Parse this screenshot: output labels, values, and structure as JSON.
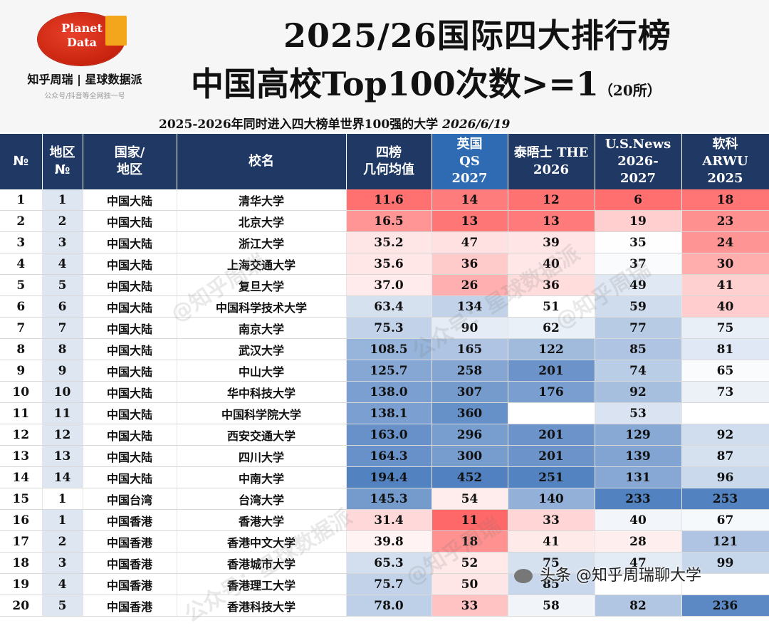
{
  "logo": {
    "line1": "Planet",
    "line2": "Data",
    "brand": "知乎周瑞 | 星球数据派",
    "sub": "公众号/抖音等全网独一号"
  },
  "title": {
    "line1": "2025/26国际四大排行榜",
    "line2": "中国高校Top100次数>=1",
    "count": "（20所）"
  },
  "subtitle": {
    "text": "2025-2026年同时进入四大榜单世界100强的大学",
    "date": "2026/6/19"
  },
  "columns": {
    "no": "№",
    "region_no": [
      "地区",
      "№"
    ],
    "country": [
      "国家/",
      "地区"
    ],
    "name": "校名",
    "geo": [
      "四榜",
      "几何均值"
    ],
    "qs": [
      "英国",
      "QS",
      "2027"
    ],
    "the": [
      "泰晤士 THE",
      "2026"
    ],
    "usnews": [
      "U.S.News",
      "2026-",
      "2027"
    ],
    "arwu": [
      "软科",
      "ARWU",
      "2025"
    ]
  },
  "rows": [
    {
      "no": "1",
      "rno": "1",
      "region": "中国大陆",
      "name": "清华大学",
      "geo": "11.6",
      "qs": "14",
      "the": "12",
      "us": "6",
      "arwu": "18"
    },
    {
      "no": "2",
      "rno": "2",
      "region": "中国大陆",
      "name": "北京大学",
      "geo": "16.5",
      "qs": "13",
      "the": "13",
      "us": "19",
      "arwu": "23"
    },
    {
      "no": "3",
      "rno": "3",
      "region": "中国大陆",
      "name": "浙江大学",
      "geo": "35.2",
      "qs": "47",
      "the": "39",
      "us": "35",
      "arwu": "24"
    },
    {
      "no": "4",
      "rno": "4",
      "region": "中国大陆",
      "name": "上海交通大学",
      "geo": "35.6",
      "qs": "36",
      "the": "40",
      "us": "37",
      "arwu": "30"
    },
    {
      "no": "5",
      "rno": "5",
      "region": "中国大陆",
      "name": "复旦大学",
      "geo": "37.0",
      "qs": "26",
      "the": "36",
      "us": "49",
      "arwu": "41"
    },
    {
      "no": "6",
      "rno": "6",
      "region": "中国大陆",
      "name": "中国科学技术大学",
      "geo": "63.4",
      "qs": "134",
      "the": "51",
      "us": "59",
      "arwu": "40"
    },
    {
      "no": "7",
      "rno": "7",
      "region": "中国大陆",
      "name": "南京大学",
      "geo": "75.3",
      "qs": "90",
      "the": "62",
      "us": "77",
      "arwu": "75"
    },
    {
      "no": "8",
      "rno": "8",
      "region": "中国大陆",
      "name": "武汉大学",
      "geo": "108.5",
      "qs": "165",
      "the": "122",
      "us": "85",
      "arwu": "81"
    },
    {
      "no": "9",
      "rno": "9",
      "region": "中国大陆",
      "name": "中山大学",
      "geo": "125.7",
      "qs": "258",
      "the": "201",
      "us": "74",
      "arwu": "65"
    },
    {
      "no": "10",
      "rno": "10",
      "region": "中国大陆",
      "name": "华中科技大学",
      "geo": "138.0",
      "qs": "307",
      "the": "176",
      "us": "92",
      "arwu": "73"
    },
    {
      "no": "11",
      "rno": "11",
      "region": "中国大陆",
      "name": "中国科学院大学",
      "geo": "138.1",
      "qs": "360",
      "the": "",
      "us": "53",
      "arwu": ""
    },
    {
      "no": "12",
      "rno": "12",
      "region": "中国大陆",
      "name": "西安交通大学",
      "geo": "163.0",
      "qs": "296",
      "the": "201",
      "us": "129",
      "arwu": "92"
    },
    {
      "no": "13",
      "rno": "13",
      "region": "中国大陆",
      "name": "四川大学",
      "geo": "164.3",
      "qs": "300",
      "the": "201",
      "us": "139",
      "arwu": "87"
    },
    {
      "no": "14",
      "rno": "14",
      "region": "中国大陆",
      "name": "中南大学",
      "geo": "194.4",
      "qs": "452",
      "the": "251",
      "us": "131",
      "arwu": "96"
    },
    {
      "no": "15",
      "rno": "1",
      "region": "中国台湾",
      "name": "台湾大学",
      "geo": "145.3",
      "qs": "54",
      "the": "140",
      "us": "233",
      "arwu": "253"
    },
    {
      "no": "16",
      "rno": "1",
      "region": "中国香港",
      "name": "香港大学",
      "geo": "31.4",
      "qs": "11",
      "the": "33",
      "us": "40",
      "arwu": "67"
    },
    {
      "no": "17",
      "rno": "2",
      "region": "中国香港",
      "name": "香港中文大学",
      "geo": "39.8",
      "qs": "18",
      "the": "41",
      "us": "28",
      "arwu": "121"
    },
    {
      "no": "18",
      "rno": "3",
      "region": "中国香港",
      "name": "香港城市大学",
      "geo": "65.3",
      "qs": "52",
      "the": "75",
      "us": "47",
      "arwu": "99"
    },
    {
      "no": "19",
      "rno": "4",
      "region": "中国香港",
      "name": "香港理工大学",
      "geo": "75.7",
      "qs": "50",
      "the": "85",
      "us": "",
      "arwu": ""
    },
    {
      "no": "20",
      "rno": "5",
      "region": "中国香港",
      "name": "香港科技大学",
      "geo": "78.0",
      "qs": "33",
      "the": "58",
      "us": "82",
      "arwu": "236"
    }
  ],
  "watermarks": [
    "@知乎周瑞",
    "公众号：星球数据派"
  ],
  "footer": "头条 @知乎周瑞聊大学",
  "colors": {
    "header_bg": "#1f3864",
    "qs_header_bg": "#2e6bb3",
    "region_bg": "#dde6f1",
    "hot": "#f26161",
    "cold": "#4f7fbf"
  }
}
